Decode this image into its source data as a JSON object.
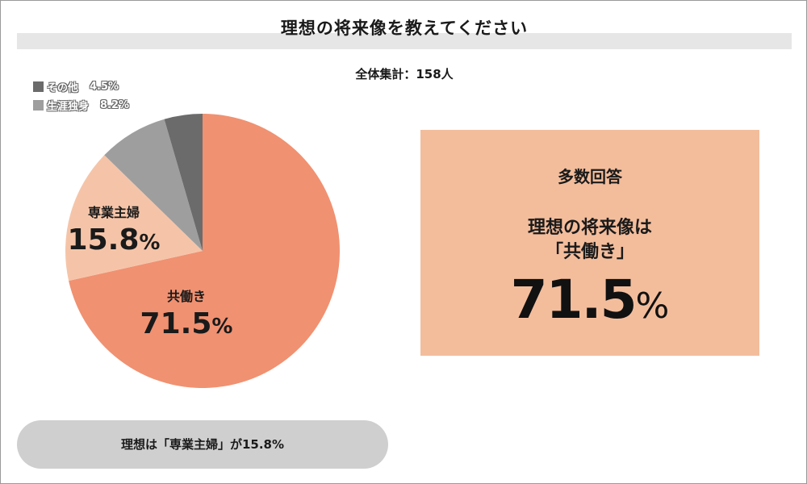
{
  "header": {
    "title": "理想の将来像を教えてください",
    "subtitle": "全体集計：158人"
  },
  "chart_data": {
    "type": "pie",
    "title": "理想の将来像を教えてください",
    "slices": [
      {
        "label": "共働き",
        "value": 71.5,
        "color": "#f09171"
      },
      {
        "label": "専業主婦",
        "value": 15.8,
        "color": "#f5c4a8"
      },
      {
        "label": "生涯独身",
        "value": 8.2,
        "color": "#9e9e9e"
      },
      {
        "label": "その他",
        "value": 4.5,
        "color": "#6b6b6b"
      }
    ],
    "value_suffix": "%",
    "legend": [
      {
        "label": "その他",
        "value": "4.5%",
        "color": "#6b6b6b"
      },
      {
        "label": "生涯独身",
        "value": "8.2%",
        "color": "#9e9e9e"
      }
    ]
  },
  "answer_box": {
    "heading": "多数回答",
    "line1": "理想の将来像は",
    "line2": "「共働き」",
    "value": "71.5",
    "unit": "%"
  },
  "footer": {
    "note": "理想は「専業主婦」が15.8%"
  }
}
